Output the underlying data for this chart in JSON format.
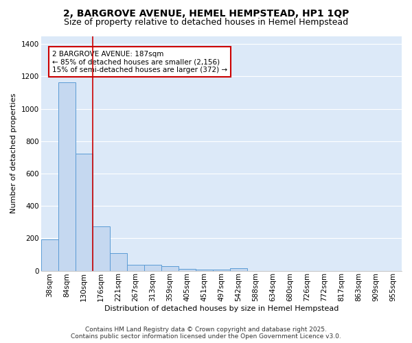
{
  "title": "2, BARGROVE AVENUE, HEMEL HEMPSTEAD, HP1 1QP",
  "subtitle": "Size of property relative to detached houses in Hemel Hempstead",
  "xlabel": "Distribution of detached houses by size in Hemel Hempstead",
  "ylabel": "Number of detached properties",
  "bar_labels": [
    "38sqm",
    "84sqm",
    "130sqm",
    "176sqm",
    "221sqm",
    "267sqm",
    "313sqm",
    "359sqm",
    "405sqm",
    "451sqm",
    "497sqm",
    "542sqm",
    "588sqm",
    "634sqm",
    "680sqm",
    "726sqm",
    "772sqm",
    "817sqm",
    "863sqm",
    "909sqm",
    "955sqm"
  ],
  "bar_values": [
    193,
    1165,
    725,
    272,
    110,
    38,
    35,
    27,
    10,
    8,
    5,
    13,
    0,
    0,
    0,
    0,
    0,
    0,
    0,
    0,
    0
  ],
  "bar_color": "#c5d8f0",
  "bar_edge_color": "#5b9bd5",
  "fig_background": "#ffffff",
  "plot_background": "#dce9f8",
  "grid_color": "#ffffff",
  "vline_color": "#cc0000",
  "vline_x_index": 2.5,
  "annotation_text": "2 BARGROVE AVENUE: 187sqm\n← 85% of detached houses are smaller (2,156)\n15% of semi-detached houses are larger (372) →",
  "annotation_box_facecolor": "#ffffff",
  "annotation_box_edgecolor": "#cc0000",
  "footer_line1": "Contains HM Land Registry data © Crown copyright and database right 2025.",
  "footer_line2": "Contains public sector information licensed under the Open Government Licence v3.0.",
  "ylim": [
    0,
    1450
  ],
  "yticks": [
    0,
    200,
    400,
    600,
    800,
    1000,
    1200,
    1400
  ],
  "title_fontsize": 10,
  "subtitle_fontsize": 9,
  "axis_label_fontsize": 8,
  "tick_fontsize": 7.5,
  "annotation_fontsize": 7.5,
  "footer_fontsize": 6.5
}
